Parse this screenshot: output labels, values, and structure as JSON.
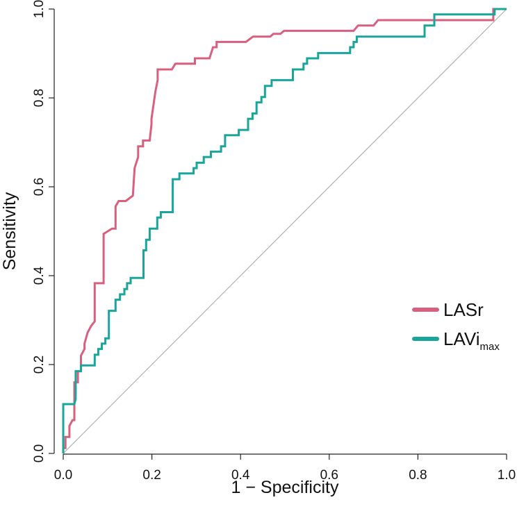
{
  "chart_data": {
    "type": "line",
    "title": "",
    "xlabel": "1 − Specificity",
    "ylabel": "Sensitivity",
    "xlim": [
      0,
      1
    ],
    "ylim": [
      0,
      1
    ],
    "xticks": [
      0.0,
      0.2,
      0.4,
      0.6,
      0.8,
      1.0
    ],
    "yticks": [
      0.0,
      0.2,
      0.4,
      0.6,
      0.8,
      1.0
    ],
    "xtick_labels": [
      "0.0",
      "0.2",
      "0.4",
      "0.6",
      "0.8",
      "1.0"
    ],
    "ytick_labels": [
      "0.0",
      "0.2",
      "0.4",
      "0.6",
      "0.8",
      "1.0"
    ],
    "grid": false,
    "legend_position": "right",
    "reference_line": {
      "name": "chance diagonal",
      "color": "#aaaaaa",
      "x": [
        0,
        1
      ],
      "y": [
        0,
        1
      ]
    },
    "series": [
      {
        "name": "LASr",
        "label_main": "LASr",
        "label_sub": "",
        "color": "#d95f7e",
        "x": [
          0.0,
          0.0,
          0.005,
          0.005,
          0.014,
          0.014,
          0.021,
          0.025,
          0.025,
          0.033,
          0.033,
          0.04,
          0.04,
          0.048,
          0.048,
          0.055,
          0.063,
          0.071,
          0.071,
          0.091,
          0.091,
          0.11,
          0.118,
          0.118,
          0.125,
          0.141,
          0.157,
          0.161,
          0.169,
          0.169,
          0.18,
          0.18,
          0.195,
          0.199,
          0.199,
          0.208,
          0.213,
          0.213,
          0.245,
          0.253,
          0.26,
          0.297,
          0.297,
          0.31,
          0.33,
          0.338,
          0.346,
          0.346,
          0.357,
          0.412,
          0.42,
          0.428,
          0.467,
          0.474,
          0.49,
          0.498,
          0.655,
          0.665,
          0.7,
          0.71,
          0.97,
          0.97,
          1.0
        ],
        "y": [
          0.0,
          0.012,
          0.012,
          0.037,
          0.037,
          0.062,
          0.075,
          0.075,
          0.16,
          0.16,
          0.185,
          0.185,
          0.22,
          0.235,
          0.247,
          0.272,
          0.287,
          0.297,
          0.383,
          0.383,
          0.494,
          0.506,
          0.506,
          0.556,
          0.568,
          0.568,
          0.58,
          0.642,
          0.667,
          0.691,
          0.691,
          0.704,
          0.704,
          0.741,
          0.753,
          0.815,
          0.84,
          0.864,
          0.864,
          0.877,
          0.877,
          0.877,
          0.889,
          0.889,
          0.889,
          0.914,
          0.914,
          0.926,
          0.926,
          0.926,
          0.932,
          0.938,
          0.938,
          0.944,
          0.944,
          0.951,
          0.951,
          0.963,
          0.963,
          0.975,
          0.975,
          1.0,
          1.0
        ]
      },
      {
        "name": "LAVi max",
        "label_main": "LAVi",
        "label_sub": "max",
        "color": "#1aa59a",
        "x": [
          0.0,
          0.0,
          0.025,
          0.028,
          0.028,
          0.04,
          0.04,
          0.055,
          0.071,
          0.071,
          0.079,
          0.079,
          0.087,
          0.087,
          0.095,
          0.095,
          0.103,
          0.103,
          0.118,
          0.118,
          0.128,
          0.128,
          0.138,
          0.138,
          0.144,
          0.144,
          0.152,
          0.152,
          0.181,
          0.181,
          0.187,
          0.187,
          0.195,
          0.195,
          0.212,
          0.212,
          0.22,
          0.22,
          0.247,
          0.247,
          0.262,
          0.262,
          0.294,
          0.294,
          0.301,
          0.301,
          0.317,
          0.317,
          0.333,
          0.333,
          0.356,
          0.356,
          0.365,
          0.365,
          0.385,
          0.385,
          0.396,
          0.396,
          0.417,
          0.417,
          0.427,
          0.427,
          0.436,
          0.436,
          0.447,
          0.447,
          0.455,
          0.455,
          0.47,
          0.47,
          0.492,
          0.497,
          0.518,
          0.518,
          0.542,
          0.542,
          0.55,
          0.55,
          0.558,
          0.558,
          0.575,
          0.575,
          0.59,
          0.59,
          0.647,
          0.647,
          0.655,
          0.655,
          0.662,
          0.662,
          0.69,
          0.69,
          0.815,
          0.815,
          0.837,
          0.837,
          0.913,
          0.913,
          0.973,
          0.973,
          0.985,
          1.0
        ],
        "y": [
          0.0,
          0.111,
          0.111,
          0.123,
          0.185,
          0.185,
          0.198,
          0.198,
          0.198,
          0.222,
          0.222,
          0.235,
          0.235,
          0.247,
          0.247,
          0.259,
          0.259,
          0.321,
          0.321,
          0.346,
          0.346,
          0.358,
          0.358,
          0.37,
          0.37,
          0.383,
          0.383,
          0.395,
          0.395,
          0.457,
          0.457,
          0.481,
          0.481,
          0.506,
          0.506,
          0.531,
          0.531,
          0.543,
          0.543,
          0.617,
          0.617,
          0.63,
          0.63,
          0.642,
          0.642,
          0.654,
          0.654,
          0.667,
          0.667,
          0.679,
          0.679,
          0.691,
          0.691,
          0.716,
          0.716,
          0.716,
          0.716,
          0.728,
          0.728,
          0.753,
          0.753,
          0.765,
          0.765,
          0.79,
          0.79,
          0.802,
          0.802,
          0.827,
          0.827,
          0.84,
          0.84,
          0.84,
          0.84,
          0.864,
          0.864,
          0.877,
          0.877,
          0.889,
          0.889,
          0.889,
          0.889,
          0.901,
          0.901,
          0.901,
          0.901,
          0.914,
          0.914,
          0.926,
          0.926,
          0.938,
          0.938,
          0.938,
          0.938,
          0.963,
          0.963,
          0.988,
          0.988,
          0.988,
          0.988,
          1.0,
          1.0,
          1.0
        ]
      }
    ]
  }
}
